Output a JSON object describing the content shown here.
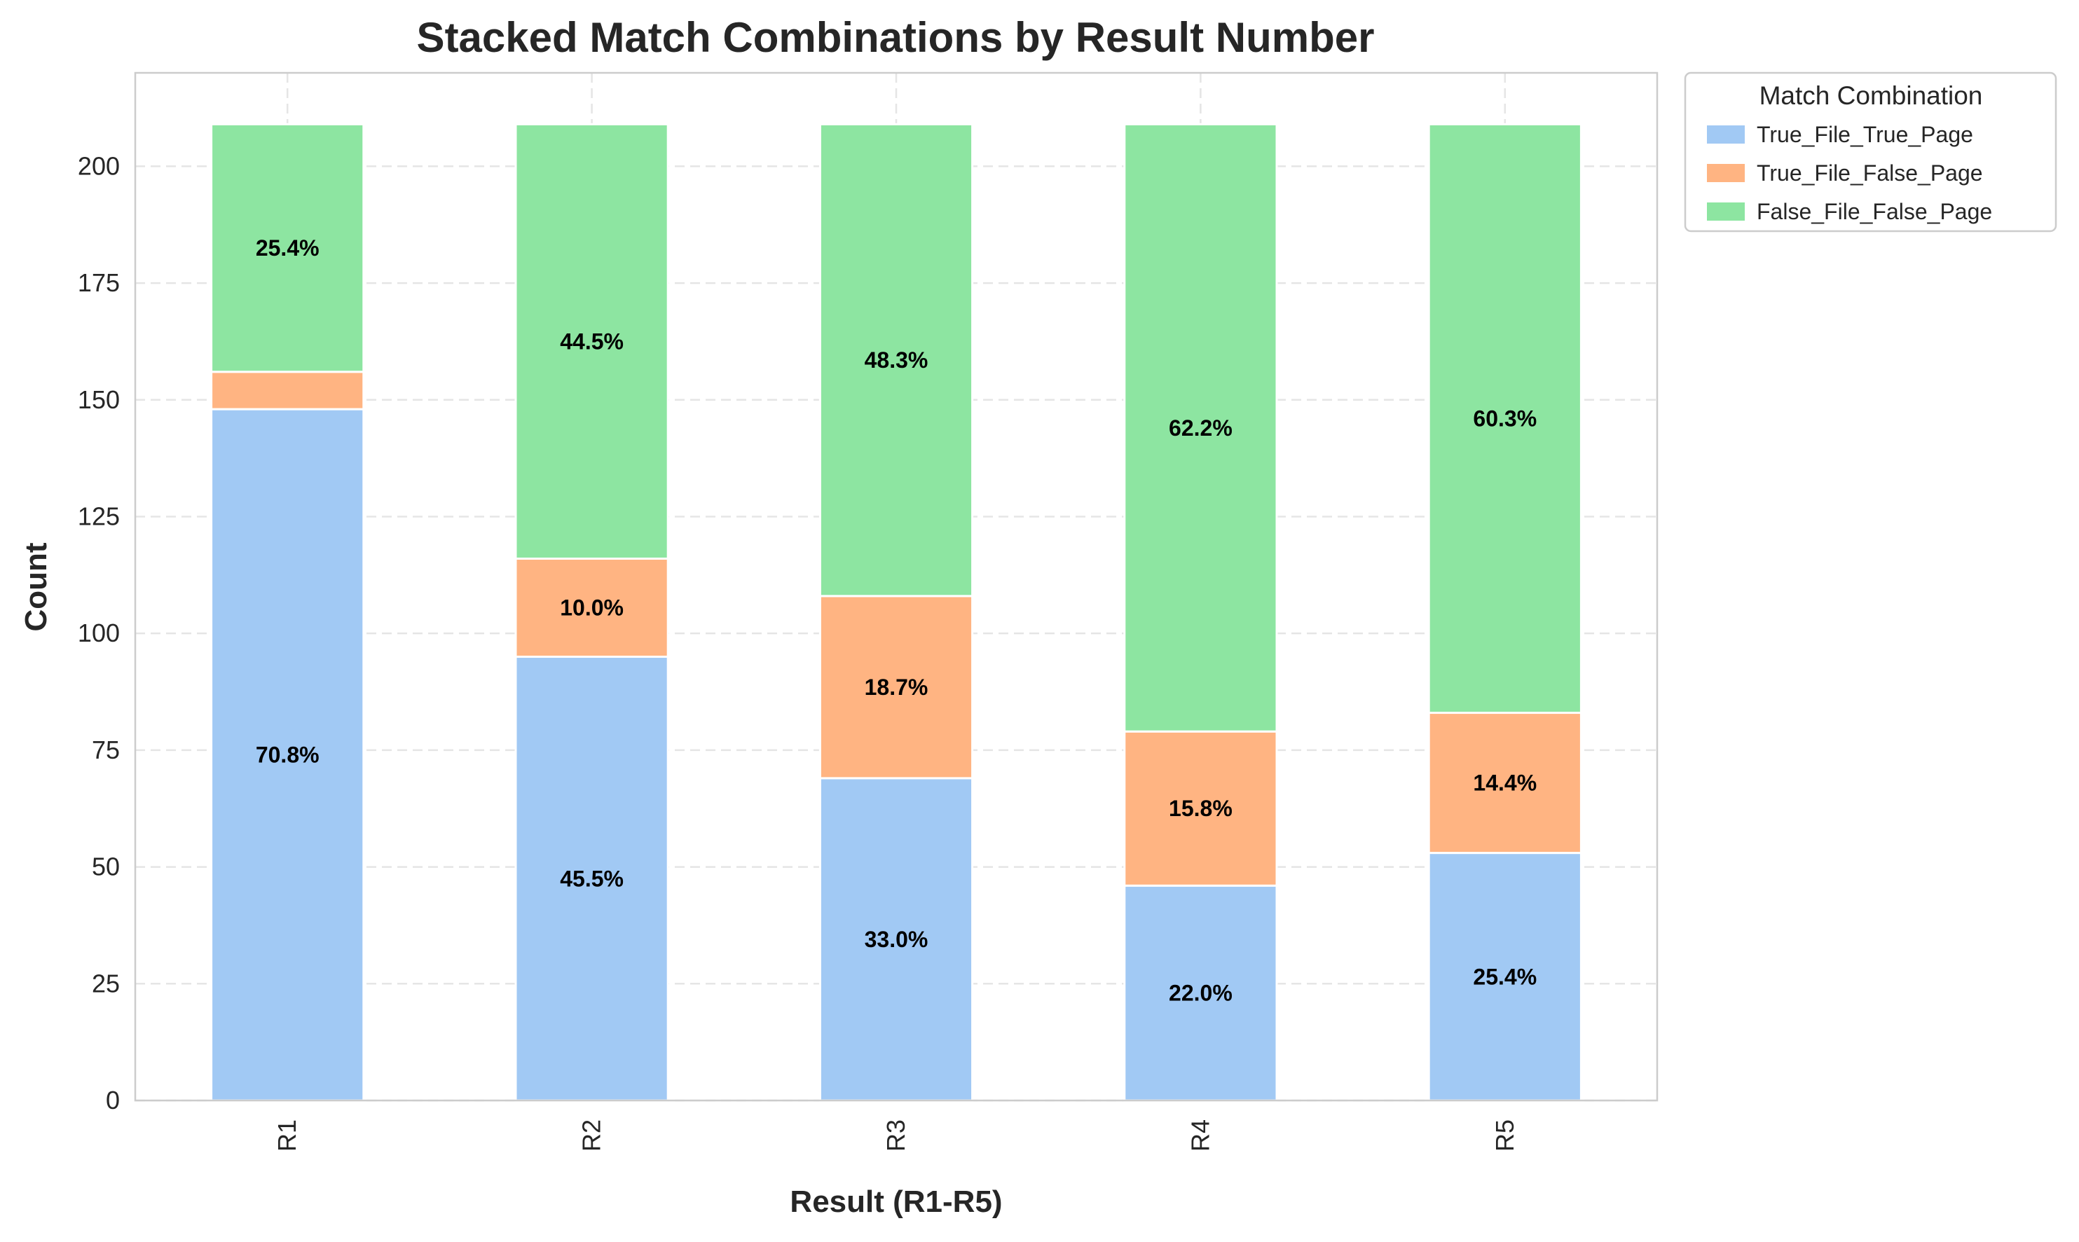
{
  "chart_data": {
    "type": "bar",
    "stacked": true,
    "title": "Stacked Match Combinations by Result Number",
    "xlabel": "Result (R1-R5)",
    "ylabel": "Count",
    "categories": [
      "R1",
      "R2",
      "R3",
      "R4",
      "R5"
    ],
    "ylim": [
      0,
      220
    ],
    "yticks": [
      0,
      25,
      50,
      75,
      100,
      125,
      150,
      175,
      200
    ],
    "grid": true,
    "legend": {
      "title": "Match Combination",
      "placement": "outside-top-right"
    },
    "series": [
      {
        "name": "True_File_True_Page",
        "color": "#a1c9f4",
        "values": [
          148,
          95,
          69,
          46,
          53
        ],
        "labels": [
          "70.8%",
          "45.5%",
          "33.0%",
          "22.0%",
          "25.4%"
        ]
      },
      {
        "name": "True_File_False_Page",
        "color": "#ffb482",
        "values": [
          8,
          21,
          39,
          33,
          30
        ],
        "labels": [
          "",
          "10.0%",
          "18.7%",
          "15.8%",
          "14.4%"
        ]
      },
      {
        "name": "False_File_False_Page",
        "color": "#8de5a1",
        "values": [
          53,
          93,
          101,
          130,
          126
        ],
        "labels": [
          "25.4%",
          "44.5%",
          "48.3%",
          "62.2%",
          "60.3%"
        ]
      }
    ]
  }
}
